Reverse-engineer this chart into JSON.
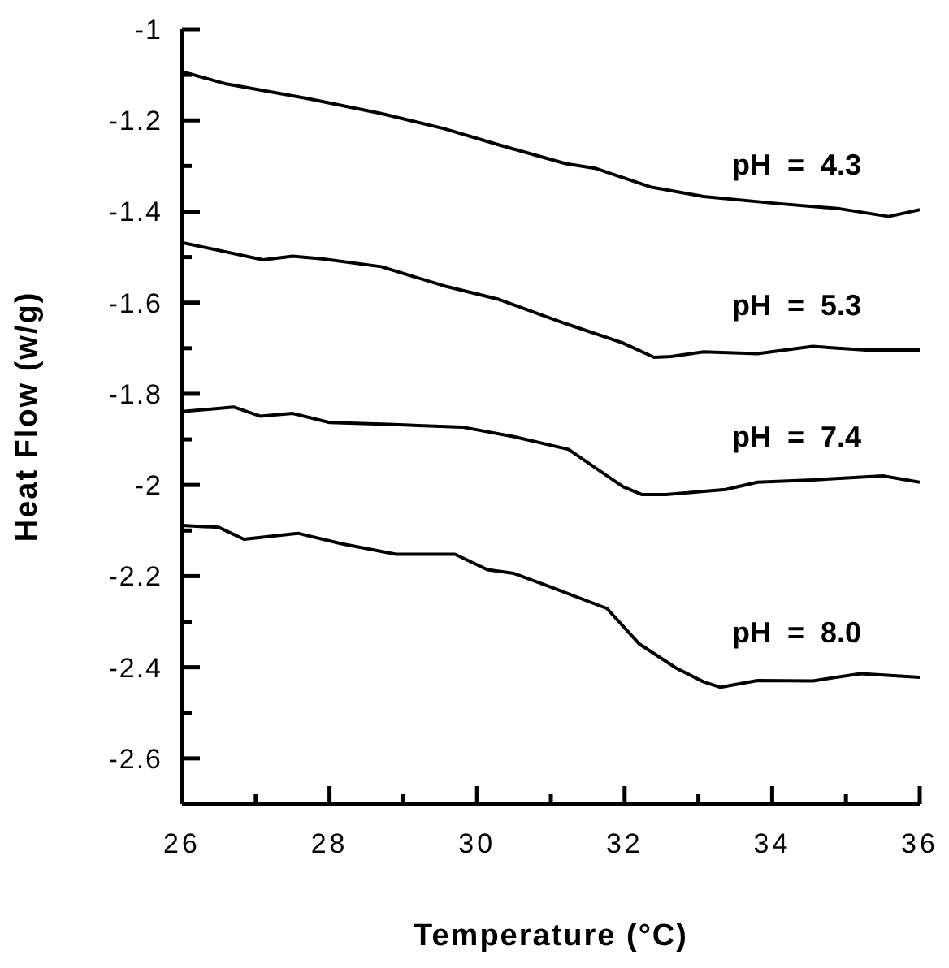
{
  "chart_data": {
    "type": "line",
    "xlabel": "Temperature  (°C)",
    "ylabel": "Heat  Flow  (w/g)",
    "xlim": [
      26,
      36
    ],
    "ylim": [
      -2.7,
      -1
    ],
    "xticks": [
      26,
      {
        "value": 27,
        "label": null
      },
      28,
      {
        "value": 29,
        "label": null
      },
      30,
      {
        "value": 31,
        "label": null
      },
      32,
      {
        "value": 33,
        "label": null
      },
      34,
      {
        "value": 35,
        "label": null
      },
      36
    ],
    "yticks": [
      -1,
      {
        "value": -1.1,
        "label": null
      },
      -1.2,
      {
        "value": -1.3,
        "label": null
      },
      -1.4,
      {
        "value": -1.5,
        "label": null
      },
      -1.6,
      {
        "value": -1.7,
        "label": null
      },
      -1.8,
      {
        "value": -1.9,
        "label": null
      },
      -2,
      {
        "value": -2.1,
        "label": null
      },
      -2.2,
      {
        "value": -2.3,
        "label": null
      },
      -2.4,
      {
        "value": -2.5,
        "label": null
      },
      -2.6
    ],
    "line_style": "solid",
    "marker": "none",
    "series": [
      {
        "name": "pH  =  4.3",
        "color": "#000000",
        "x": [
          26,
          26.6,
          27.7,
          28.7,
          29.55,
          30.3,
          31.2,
          31.6,
          32.35,
          33.07,
          34.04,
          34.92,
          35.58,
          36
        ],
        "values": [
          -1.093,
          -1.12,
          -1.152,
          -1.185,
          -1.218,
          -1.254,
          -1.295,
          -1.305,
          -1.346,
          -1.367,
          -1.382,
          -1.394,
          -1.411,
          -1.396
        ]
      },
      {
        "name": "pH  =  5.3",
        "color": "#000000",
        "x": [
          26,
          27.1,
          27.5,
          27.9,
          28.7,
          29.55,
          30.3,
          31.2,
          31.97,
          32.4,
          32.63,
          33.07,
          33.8,
          34.55,
          35.27,
          36
        ],
        "values": [
          -1.468,
          -1.506,
          -1.498,
          -1.504,
          -1.521,
          -1.563,
          -1.593,
          -1.646,
          -1.688,
          -1.72,
          -1.718,
          -1.708,
          -1.712,
          -1.696,
          -1.704,
          -1.704
        ]
      },
      {
        "name": "pH  =  7.4",
        "color": "#000000",
        "x": [
          26,
          26.7,
          27.06,
          27.5,
          28,
          28.8,
          29.8,
          30.5,
          31.24,
          31.6,
          31.98,
          32.23,
          32.56,
          33.37,
          33.8,
          34.55,
          35.5,
          36
        ],
        "values": [
          -1.839,
          -1.829,
          -1.849,
          -1.843,
          -1.863,
          -1.867,
          -1.873,
          -1.894,
          -1.922,
          -1.962,
          -2.004,
          -2.021,
          -2.021,
          -2.01,
          -1.994,
          -1.989,
          -1.98,
          -1.994
        ]
      },
      {
        "name": "pH  =  8.0",
        "color": "#000000",
        "x": [
          26,
          26.5,
          26.84,
          27.57,
          28.16,
          28.9,
          29.7,
          30.14,
          30.5,
          31,
          31.76,
          32.2,
          32.7,
          33.07,
          33.3,
          33.8,
          34.55,
          35.2,
          36
        ],
        "values": [
          -2.089,
          -2.093,
          -2.119,
          -2.106,
          -2.129,
          -2.152,
          -2.152,
          -2.186,
          -2.194,
          -2.224,
          -2.271,
          -2.349,
          -2.402,
          -2.432,
          -2.444,
          -2.429,
          -2.43,
          -2.414,
          -2.422
        ]
      }
    ]
  }
}
